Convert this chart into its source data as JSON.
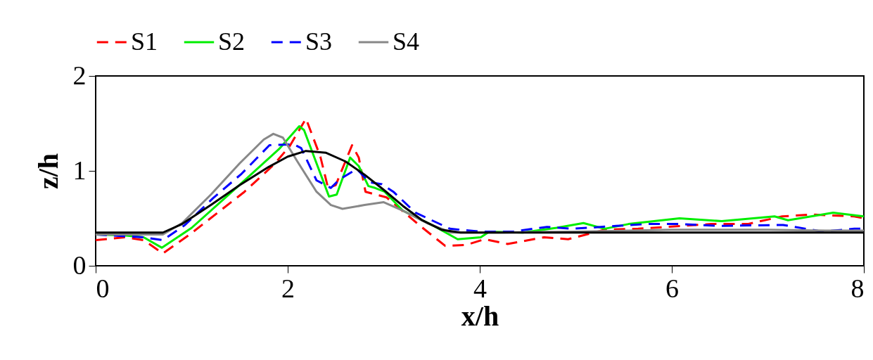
{
  "chart_data": {
    "type": "line",
    "xlabel": "x/h",
    "ylabel": "z/h",
    "xlim": [
      0,
      8
    ],
    "ylim": [
      0,
      2
    ],
    "xticks": [
      0,
      2,
      4,
      6,
      8
    ],
    "yticks": [
      0,
      1,
      2
    ],
    "legend": "top",
    "grid": false,
    "series": [
      {
        "name": "S1",
        "color": "#ff0000",
        "line_style": "dashed",
        "x": [
          0,
          0.3,
          0.5,
          0.7,
          0.98,
          1.55,
          1.86,
          2.02,
          2.19,
          2.34,
          2.42,
          2.5,
          2.67,
          2.74,
          2.81,
          3.03,
          3.38,
          3.64,
          3.86,
          4.05,
          4.29,
          4.67,
          4.92,
          5.3,
          5.65,
          6.41,
          6.79,
          7.15,
          7.46,
          7.9,
          8
        ],
        "values": [
          0.27,
          0.3,
          0.27,
          0.13,
          0.33,
          0.78,
          1.07,
          1.26,
          1.55,
          1.15,
          0.82,
          0.85,
          1.27,
          1.14,
          0.78,
          0.72,
          0.42,
          0.21,
          0.22,
          0.28,
          0.23,
          0.3,
          0.28,
          0.38,
          0.39,
          0.44,
          0.44,
          0.52,
          0.54,
          0.52,
          0.5
        ]
      },
      {
        "name": "S2",
        "color": "#00ee00",
        "line_style": "solid",
        "x": [
          0,
          0.3,
          0.5,
          0.69,
          1.0,
          1.42,
          1.91,
          2.12,
          2.17,
          2.43,
          2.51,
          2.65,
          2.74,
          2.84,
          2.91,
          3.01,
          3.2,
          3.52,
          3.77,
          4.01,
          4.1,
          4.45,
          4.8,
          5.08,
          5.3,
          5.55,
          6.08,
          6.52,
          7.07,
          7.21,
          7.68,
          8
        ],
        "values": [
          0.33,
          0.32,
          0.3,
          0.19,
          0.4,
          0.78,
          1.23,
          1.47,
          1.43,
          0.73,
          0.75,
          1.14,
          1.05,
          0.84,
          0.82,
          0.78,
          0.58,
          0.42,
          0.28,
          0.3,
          0.36,
          0.35,
          0.4,
          0.45,
          0.39,
          0.44,
          0.5,
          0.47,
          0.52,
          0.48,
          0.56,
          0.52
        ]
      },
      {
        "name": "S3",
        "color": "#0000ff",
        "line_style": "dashed",
        "x": [
          0,
          0.5,
          0.7,
          0.93,
          1.22,
          1.52,
          1.81,
          2.06,
          2.14,
          2.3,
          2.45,
          2.54,
          2.72,
          2.85,
          2.98,
          3.1,
          3.33,
          3.69,
          4.0,
          4.35,
          4.7,
          4.97,
          5.42,
          5.75,
          6.09,
          6.49,
          7.16,
          7.57,
          7.9,
          8
        ],
        "values": [
          0.33,
          0.3,
          0.27,
          0.43,
          0.71,
          0.97,
          1.27,
          1.28,
          1.24,
          0.9,
          0.82,
          0.91,
          1.02,
          0.88,
          0.86,
          0.78,
          0.56,
          0.39,
          0.36,
          0.36,
          0.41,
          0.39,
          0.42,
          0.44,
          0.44,
          0.42,
          0.43,
          0.36,
          0.39,
          0.39
        ]
      },
      {
        "name": "S4",
        "color": "#888888",
        "line_style": "solid",
        "x": [
          0,
          0.7,
          0.9,
          1.2,
          1.5,
          1.75,
          1.85,
          1.95,
          2.1,
          2.3,
          2.45,
          2.57,
          2.8,
          3.0,
          3.2,
          3.45,
          3.7,
          4.2,
          5.0,
          6.0,
          7.0,
          7.6,
          8
        ],
        "values": [
          0.33,
          0.33,
          0.45,
          0.75,
          1.08,
          1.33,
          1.39,
          1.35,
          1.1,
          0.78,
          0.64,
          0.6,
          0.64,
          0.67,
          0.58,
          0.45,
          0.35,
          0.35,
          0.36,
          0.38,
          0.38,
          0.37,
          0.37
        ]
      },
      {
        "color": "#000000",
        "line_style": "solid",
        "x": [
          0,
          0.7,
          0.9,
          1.2,
          1.5,
          1.8,
          2.0,
          2.19,
          2.4,
          2.6,
          2.8,
          3.0,
          3.2,
          3.4,
          3.6,
          3.8,
          4.0,
          5.0,
          6.0,
          7.0,
          8
        ],
        "values": [
          0.35,
          0.35,
          0.44,
          0.64,
          0.85,
          1.04,
          1.15,
          1.21,
          1.19,
          1.1,
          0.96,
          0.8,
          0.63,
          0.48,
          0.38,
          0.35,
          0.35,
          0.35,
          0.35,
          0.35,
          0.35
        ]
      }
    ]
  }
}
